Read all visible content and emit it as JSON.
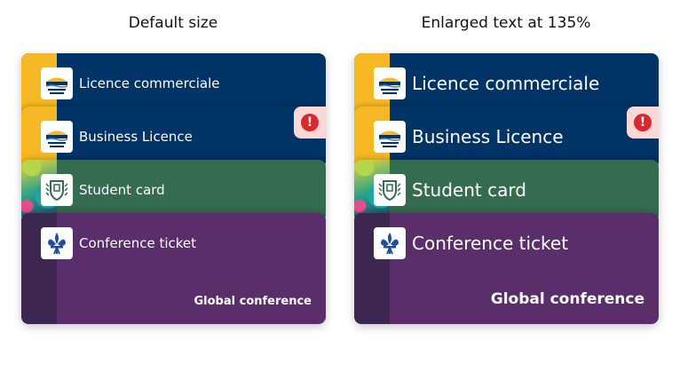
{
  "headings": {
    "default": "Default size",
    "enlarged": "Enlarged text at 135%"
  },
  "cards": [
    {
      "label": "Licence commerciale",
      "logo": "bc-government-logo"
    },
    {
      "label": "Business Licence",
      "logo": "bc-government-logo"
    },
    {
      "label": "Student card",
      "logo": "shield-crest-icon"
    },
    {
      "label": "Conference ticket",
      "logo": "fleur-de-lis-icon",
      "sublabel": "Global conference"
    }
  ],
  "alert": {
    "icon": "alert-exclamation-icon",
    "glyph": "!"
  },
  "colors": {
    "bc_blue": "#003366",
    "bc_gold": "#f6b824",
    "green": "#356b4f",
    "purple": "#5a2e6b",
    "alert_red": "#d8292f"
  }
}
